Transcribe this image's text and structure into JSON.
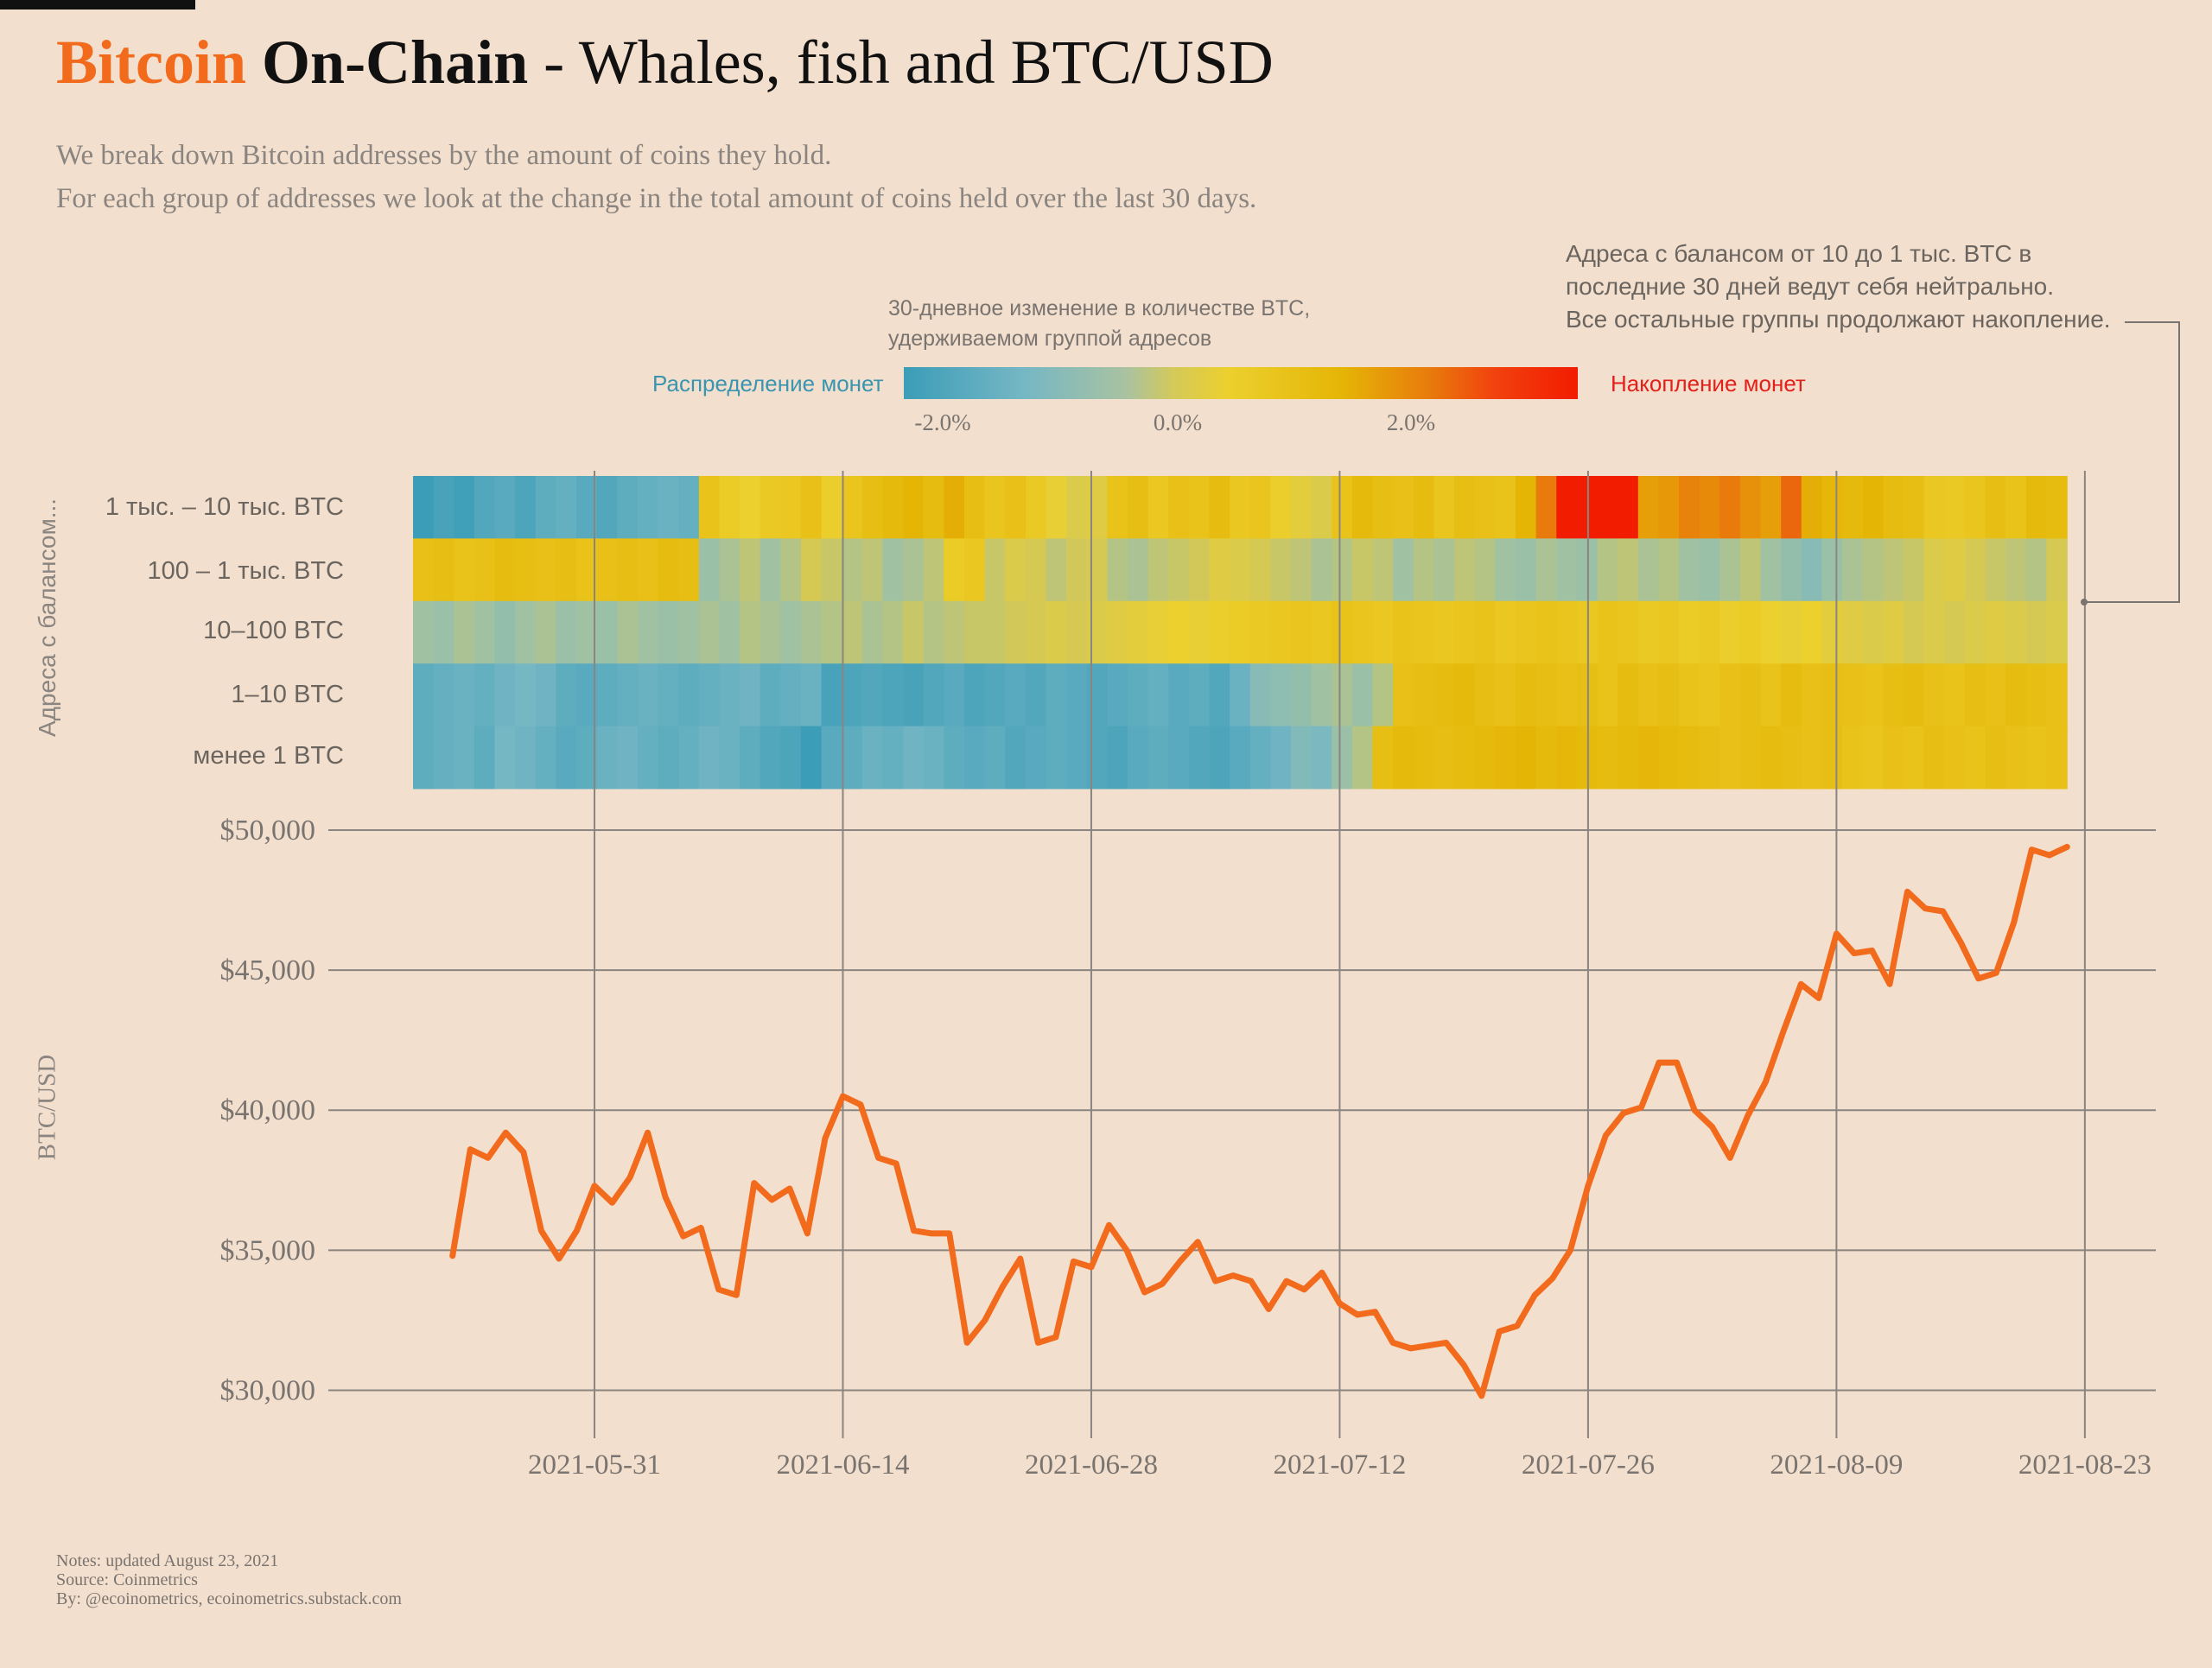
{
  "header": {
    "title_brand": "Bitcoin",
    "title_bold": "On-Chain",
    "title_rest": " - Whales, fish and BTC/USD",
    "subtitle_1": "We break down Bitcoin addresses by the amount of coins they hold.",
    "subtitle_2": "For each group of addresses we look at the change in the total amount of coins held over the last 30 days."
  },
  "legend": {
    "title_1": "30-дневное изменение в количестве BTC,",
    "title_2": "удерживаемом группой адресов",
    "left_label": "Распределение монет",
    "right_label": "Накопление монет",
    "ticks": [
      "-2.0%",
      "0.0%",
      "2.0%"
    ],
    "colors": {
      "distribution": "#3a95b0",
      "accumulation": "#e3201a"
    }
  },
  "annotation": {
    "line_1": "Адреса с балансом от 10 до 1 тыс. BTC в",
    "line_2": "последние 30 дней ведут себя нейтрально.",
    "line_3": "Все остальные группы продолжают накопление."
  },
  "heatmap": {
    "ylabel": "Адреса с балансом...",
    "rows": [
      {
        "label": "1 тыс. – 10 тыс. BTC",
        "segments": [
          [
            -2.2,
            -2.0,
            -2.1,
            -1.8,
            -1.7,
            -1.9,
            -1.6,
            -1.5,
            -1.7,
            -1.8,
            -1.6,
            -1.5,
            -1.4,
            -1.5
          ],
          [
            1.2,
            0.8,
            0.6,
            0.9,
            1.0,
            1.3,
            0.7,
            1.1,
            1.4,
            1.6,
            1.8,
            1.5,
            1.9,
            1.4
          ],
          [
            1.1,
            1.3,
            0.9,
            0.5,
            0.2,
            0.3,
            1.2,
            1.4,
            1.0,
            1.3,
            1.2,
            1.5,
            1.0,
            1.1
          ],
          [
            0.7,
            0.4,
            0.2,
            1.2,
            1.6,
            1.4,
            1.3,
            1.5,
            1.1,
            1.4,
            1.3,
            1.2,
            1.8,
            2.6
          ],
          [
            3.6,
            3.6,
            3.6,
            3.6,
            2.1,
            2.2,
            2.5,
            2.4,
            2.6,
            2.3,
            2.1,
            2.8,
            1.9,
            1.7
          ],
          [
            1.6,
            1.8,
            1.5,
            1.4,
            1.0,
            0.9,
            1.1,
            1.4,
            1.2,
            1.6,
            1.5
          ]
        ]
      },
      {
        "label": "100 – 1 тыс. BTC",
        "segments": [
          [
            1.3,
            1.4,
            1.2,
            1.3,
            1.5,
            1.4,
            1.3,
            1.4,
            1.2,
            1.3,
            1.4,
            1.3,
            1.5,
            1.4
          ],
          [
            -0.6,
            -0.4,
            -0.2,
            -0.5,
            -0.3,
            0.1,
            -0.1,
            -0.3,
            -0.2,
            -0.5,
            -0.4,
            -0.2,
            0.8,
            1.0
          ],
          [
            -0.1,
            0.2,
            0.1,
            -0.2,
            0.0,
            0.1,
            -0.3,
            -0.4,
            -0.2,
            -0.1,
            0.0,
            0.3,
            0.2,
            0.1
          ],
          [
            -0.1,
            -0.2,
            -0.4,
            -0.3,
            -0.1,
            -0.2,
            -0.5,
            -0.3,
            -0.4,
            -0.2,
            -0.3,
            -0.5,
            -0.6,
            -0.4
          ],
          [
            -0.5,
            -0.6,
            -0.3,
            -0.2,
            -0.4,
            -0.3,
            -0.5,
            -0.6,
            -0.4,
            -0.2,
            -0.5,
            -0.7,
            -0.9,
            -0.6
          ],
          [
            -0.4,
            -0.3,
            -0.2,
            -0.1,
            0.2,
            0.3,
            0.1,
            -0.1,
            -0.2,
            -0.3,
            0.1
          ]
        ]
      },
      {
        "label": "10–100 BTC",
        "segments": [
          [
            -0.5,
            -0.6,
            -0.4,
            -0.5,
            -0.7,
            -0.5,
            -0.4,
            -0.6,
            -0.5,
            -0.6,
            -0.4,
            -0.5,
            -0.6,
            -0.5
          ],
          [
            -0.4,
            -0.5,
            -0.3,
            -0.4,
            -0.5,
            -0.4,
            -0.3,
            -0.2,
            -0.4,
            -0.3,
            -0.1,
            -0.3,
            -0.2,
            -0.1
          ],
          [
            -0.1,
            0.0,
            0.1,
            0.2,
            0.1,
            0.2,
            0.3,
            0.4,
            0.5,
            0.6,
            0.5,
            0.7,
            0.8,
            0.9
          ],
          [
            1.0,
            1.1,
            1.0,
            1.2,
            1.1,
            1.0,
            1.2,
            1.1,
            1.0,
            1.1,
            1.2,
            1.0,
            1.1,
            1.2
          ],
          [
            1.1,
            1.0,
            1.2,
            1.1,
            0.9,
            1.0,
            0.8,
            0.9,
            0.7,
            0.8,
            0.6,
            0.5,
            0.6,
            0.4
          ],
          [
            0.3,
            0.2,
            0.3,
            0.1,
            0.2,
            0.1,
            0.2,
            0.3,
            0.2,
            0.1,
            0.2
          ]
        ]
      },
      {
        "label": "1–10 BTC",
        "segments": [
          [
            -1.6,
            -1.5,
            -1.4,
            -1.5,
            -1.3,
            -1.2,
            -1.3,
            -1.6,
            -1.7,
            -1.6,
            -1.5,
            -1.4,
            -1.5,
            -1.6
          ],
          [
            -1.5,
            -1.4,
            -1.3,
            -1.6,
            -1.5,
            -1.4,
            -2.0,
            -1.9,
            -1.8,
            -1.9,
            -2.0,
            -1.8,
            -1.7,
            -1.9
          ],
          [
            -1.8,
            -1.7,
            -1.8,
            -1.6,
            -1.7,
            -1.8,
            -1.7,
            -1.6,
            -1.5,
            -1.7,
            -1.6,
            -1.8,
            -1.4,
            -0.9
          ],
          [
            -0.8,
            -0.7,
            -0.5,
            -0.4,
            -0.6,
            -0.3,
            1.3,
            1.4,
            1.5,
            1.6,
            1.4,
            1.3,
            1.5,
            1.4
          ],
          [
            1.3,
            1.4,
            1.2,
            1.5,
            1.3,
            1.4,
            1.2,
            1.1,
            1.3,
            1.4,
            1.2,
            1.5,
            1.3,
            1.4
          ],
          [
            1.3,
            1.2,
            1.4,
            1.5,
            1.3,
            1.2,
            1.4,
            1.3,
            1.5,
            1.4,
            1.3
          ]
        ]
      },
      {
        "label": "менее 1 BTC",
        "segments": [
          [
            -1.6,
            -1.5,
            -1.4,
            -1.6,
            -1.2,
            -1.3,
            -1.5,
            -1.7,
            -1.6,
            -1.4,
            -1.3,
            -1.5,
            -1.6,
            -1.5
          ],
          [
            -1.3,
            -1.4,
            -1.6,
            -1.8,
            -1.9,
            -2.2,
            -1.7,
            -1.6,
            -1.4,
            -1.5,
            -1.3,
            -1.4,
            -1.6,
            -1.7
          ],
          [
            -1.6,
            -1.8,
            -1.7,
            -1.6,
            -1.7,
            -1.8,
            -1.9,
            -1.7,
            -1.6,
            -1.7,
            -1.8,
            -1.9,
            -1.7,
            -1.5
          ],
          [
            -1.3,
            -1.0,
            -1.1,
            -0.6,
            -0.3,
            1.4,
            1.6,
            1.5,
            1.4,
            1.5,
            1.6,
            1.7,
            1.8,
            1.6
          ],
          [
            1.7,
            1.6,
            1.5,
            1.6,
            1.7,
            1.6,
            1.5,
            1.4,
            1.3,
            1.4,
            1.5,
            1.4,
            1.3,
            1.4
          ],
          [
            1.2,
            1.1,
            1.3,
            1.2,
            1.4,
            1.3,
            1.2,
            1.4,
            1.3,
            1.2,
            1.3
          ]
        ]
      }
    ]
  },
  "notes": {
    "line_1": "Notes: updated August 23, 2021",
    "line_2": "Source: Coinmetrics",
    "line_3": "By: @ecoinometrics, ecoinometrics.substack.com"
  },
  "chart_data": {
    "type": "line",
    "title": "Bitcoin On-Chain - Whales, fish and BTC/USD",
    "ylabel": "BTC/USD",
    "xlabel": "",
    "x_start": "2021-05-23",
    "x_end": "2021-08-22",
    "xlim": [
      "2021-05-16",
      "2021-08-27"
    ],
    "x_ticks": [
      "2021-05-31",
      "2021-06-14",
      "2021-06-28",
      "2021-07-12",
      "2021-07-26",
      "2021-08-09",
      "2021-08-23"
    ],
    "y_ticks": [
      "$30,000",
      "$35,000",
      "$40,000",
      "$45,000",
      "$50,000"
    ],
    "ylim": [
      29400,
      50800
    ],
    "grid": true,
    "color": "#f26b1d",
    "series": [
      {
        "values": [
          34800,
          38600,
          38300,
          39200,
          38500,
          35700,
          34700,
          35700,
          37300,
          36700,
          37600,
          39200,
          36900,
          35500,
          35800,
          33600,
          33400,
          37400,
          36800,
          37200,
          35600,
          39000,
          40500,
          40200,
          38300,
          38100,
          35700,
          35600,
          35600,
          31700,
          32500,
          33700,
          34700,
          31700,
          31900,
          34600,
          34400,
          35900,
          35000,
          33500,
          33800,
          34600,
          35300,
          33900,
          34100,
          33900,
          32900,
          33900,
          33600,
          34200,
          33100,
          32700,
          32800,
          31700,
          31500,
          31600,
          31700,
          30900,
          29800,
          32100,
          32300,
          33400,
          34000,
          35000,
          37300,
          39100,
          39900,
          40100,
          41700,
          41700,
          40000,
          39400,
          38300,
          39800,
          41000,
          42800,
          44500,
          44000,
          46300,
          45600,
          45700,
          44500,
          47800,
          47200,
          47100,
          46000,
          44700,
          44900,
          46700,
          49300,
          49100,
          49400
        ]
      }
    ]
  }
}
